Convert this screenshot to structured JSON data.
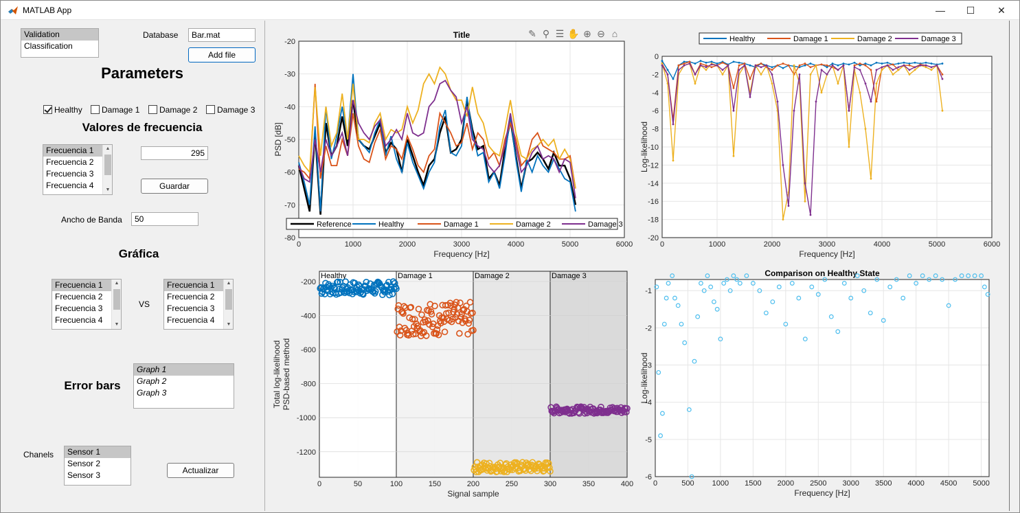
{
  "window": {
    "title": "MATLAB App",
    "min": "—",
    "max": "☐",
    "close": "✕"
  },
  "left": {
    "mode_list": [
      "Validation",
      "Classification"
    ],
    "database_label": "Database",
    "database_value": "Bar.mat",
    "add_file": "Add file",
    "parameters_heading": "Parameters",
    "checkboxes": [
      {
        "label": "Healthy",
        "checked": true
      },
      {
        "label": "Damage 1",
        "checked": false
      },
      {
        "label": "Damage 2",
        "checked": false
      },
      {
        "label": "Damage 3",
        "checked": false
      }
    ],
    "valores_heading": "Valores de frecuencia",
    "freq_list": [
      "Frecuencia 1",
      "Frecuencia 2",
      "Frecuencia 3",
      "Frecuencia 4"
    ],
    "freq_value": "295",
    "guardar": "Guardar",
    "ancho_label": "Ancho de Banda",
    "ancho_value": "50",
    "grafica_heading": "Gráfica",
    "vs_label": "VS",
    "freq_list_a": [
      "Frecuencia 1",
      "Frecuencia 2",
      "Frecuencia 3",
      "Frecuencia 4"
    ],
    "freq_list_b": [
      "Frecuencia 1",
      "Frecuencia 2",
      "Frecuencia 3",
      "Frecuencia 4"
    ],
    "error_bars_heading": "Error bars",
    "graph_list": [
      "Graph 1",
      "Graph 2",
      "Graph 3"
    ],
    "chanels_label": "Chanels",
    "sensor_list": [
      "Sensor 1",
      "Sensor 2",
      "Sensor 3"
    ],
    "actualizar": "Actualizar"
  },
  "colors": {
    "blue": "#0072BD",
    "orange": "#D95319",
    "yellow": "#EDB120",
    "purple": "#7E2F8E",
    "black": "#000000",
    "light_blue": "#4DBEEE"
  },
  "chart_data": [
    {
      "id": "psd",
      "type": "line",
      "title": "Title",
      "xlabel": "Frequency [Hz]",
      "ylabel": "PSD [dB]",
      "xlim": [
        0,
        6000
      ],
      "ylim": [
        -80,
        -20
      ],
      "xticks": [
        "0",
        "1000",
        "2000",
        "3000",
        "4000",
        "5000",
        "6000"
      ],
      "yticks": [
        "-20",
        "-30",
        "-40",
        "-50",
        "-60",
        "-70",
        "-80"
      ],
      "legend": [
        "Reference",
        "Healthy",
        "Damage 1",
        "Damage 2",
        "Damage 3"
      ],
      "x": [
        0,
        100,
        200,
        300,
        400,
        500,
        600,
        700,
        800,
        900,
        1000,
        1100,
        1200,
        1300,
        1400,
        1500,
        1600,
        1700,
        1800,
        1900,
        2000,
        2100,
        2200,
        2300,
        2400,
        2500,
        2600,
        2700,
        2800,
        2900,
        3000,
        3100,
        3200,
        3300,
        3400,
        3500,
        3600,
        3700,
        3800,
        3900,
        4000,
        4100,
        4200,
        4300,
        4400,
        4500,
        4600,
        4700,
        4800,
        4900,
        5000,
        5100
      ],
      "series": [
        {
          "name": "Reference",
          "values": [
            -58,
            -65,
            -72,
            -48,
            -73,
            -45,
            -55,
            -52,
            -43,
            -52,
            -38,
            -50,
            -52,
            -53,
            -49,
            -45,
            -54,
            -51,
            -53,
            -60,
            -50,
            -55,
            -60,
            -64,
            -58,
            -56,
            -48,
            -43,
            -54,
            -53,
            -50,
            -38,
            -47,
            -53,
            -52,
            -62,
            -60,
            -64,
            -53,
            -44,
            -55,
            -65,
            -57,
            -56,
            -54,
            -56,
            -59,
            -54,
            -58,
            -58,
            -62,
            -70
          ]
        },
        {
          "name": "Healthy",
          "values": [
            -57,
            -63,
            -70,
            -46,
            -72,
            -40,
            -56,
            -49,
            -40,
            -50,
            -30,
            -50,
            -52,
            -54,
            -48,
            -44,
            -55,
            -49,
            -56,
            -60,
            -51,
            -57,
            -61,
            -65,
            -60,
            -57,
            -46,
            -41,
            -54,
            -55,
            -52,
            -37,
            -48,
            -55,
            -54,
            -63,
            -60,
            -65,
            -55,
            -43,
            -56,
            -66,
            -56,
            -60,
            -55,
            -58,
            -60,
            -56,
            -59,
            -62,
            -63,
            -72
          ]
        },
        {
          "name": "Damage 1",
          "values": [
            -59,
            -60,
            -62,
            -33,
            -62,
            -52,
            -58,
            -58,
            -50,
            -55,
            -42,
            -52,
            -56,
            -57,
            -51,
            -47,
            -56,
            -52,
            -53,
            -56,
            -49,
            -53,
            -58,
            -60,
            -55,
            -53,
            -42,
            -45,
            -48,
            -52,
            -51,
            -45,
            -53,
            -48,
            -50,
            -56,
            -54,
            -58,
            -50,
            -45,
            -50,
            -58,
            -56,
            -50,
            -48,
            -52,
            -53,
            -54,
            -56,
            -56,
            -55,
            -65
          ]
        },
        {
          "name": "Damage 2",
          "values": [
            -55,
            -58,
            -60,
            -34,
            -55,
            -40,
            -52,
            -48,
            -36,
            -50,
            -33,
            -50,
            -50,
            -51,
            -45,
            -42,
            -50,
            -47,
            -48,
            -47,
            -40,
            -45,
            -41,
            -33,
            -30,
            -33,
            -28,
            -30,
            -35,
            -38,
            -38,
            -43,
            -34,
            -42,
            -45,
            -52,
            -54,
            -55,
            -47,
            -38,
            -48,
            -55,
            -56,
            -53,
            -52,
            -50,
            -52,
            -50,
            -56,
            -53,
            -56,
            -65
          ]
        },
        {
          "name": "Damage 3",
          "values": [
            -58,
            -62,
            -63,
            -50,
            -60,
            -50,
            -55,
            -52,
            -48,
            -55,
            -38,
            -45,
            -48,
            -50,
            -46,
            -44,
            -52,
            -50,
            -47,
            -50,
            -42,
            -48,
            -49,
            -48,
            -40,
            -38,
            -33,
            -32,
            -35,
            -37,
            -45,
            -40,
            -50,
            -52,
            -53,
            -58,
            -60,
            -58,
            -52,
            -42,
            -52,
            -60,
            -58,
            -54,
            -52,
            -56,
            -55,
            -56,
            -60,
            -56,
            -57,
            -68
          ]
        }
      ]
    },
    {
      "id": "loglik",
      "type": "line",
      "title": "",
      "xlabel": "Frequency [Hz]",
      "ylabel": "Log-likelihood",
      "xlim": [
        0,
        6000
      ],
      "ylim": [
        -20,
        0
      ],
      "xticks": [
        "0",
        "1000",
        "2000",
        "3000",
        "4000",
        "5000",
        "6000"
      ],
      "yticks": [
        "0",
        "-2",
        "-4",
        "-6",
        "-8",
        "-10",
        "-12",
        "-14",
        "-16",
        "-18",
        "-20"
      ],
      "legend": [
        "Healthy",
        "Damage 1",
        "Damage 2",
        "Damage 3"
      ],
      "x": [
        0,
        100,
        200,
        300,
        400,
        500,
        600,
        700,
        800,
        900,
        1000,
        1100,
        1200,
        1300,
        1400,
        1500,
        1600,
        1700,
        1800,
        1900,
        2000,
        2100,
        2200,
        2300,
        2400,
        2500,
        2600,
        2700,
        2800,
        2900,
        3000,
        3100,
        3200,
        3300,
        3400,
        3500,
        3600,
        3700,
        3800,
        3900,
        4000,
        4100,
        4200,
        4300,
        4400,
        4500,
        4600,
        4700,
        4800,
        4900,
        5000,
        5100
      ],
      "series": [
        {
          "name": "Healthy",
          "values": [
            -0.5,
            -1.5,
            -2.5,
            -1.0,
            -0.6,
            -0.6,
            -0.8,
            -0.5,
            -0.7,
            -0.6,
            -0.8,
            -0.6,
            -0.9,
            -0.6,
            -0.7,
            -0.8,
            -1.0,
            -1.2,
            -0.8,
            -1.0,
            -1.2,
            -1.0,
            -1.3,
            -1.0,
            -1.1,
            -1.2,
            -1.0,
            -0.8,
            -1.0,
            -0.9,
            -1.2,
            -0.8,
            -1.0,
            -0.8,
            -0.9,
            -0.7,
            -1.0,
            -0.8,
            -1.0,
            -0.7,
            -0.8,
            -0.7,
            -0.9,
            -0.8,
            -0.7,
            -0.8,
            -0.7,
            -0.8,
            -0.7,
            -0.8,
            -0.9,
            -0.8
          ]
        },
        {
          "name": "Damage 1",
          "values": [
            -0.8,
            -2.0,
            -7.0,
            -1.0,
            -0.8,
            -0.6,
            -2.0,
            -0.8,
            -1.0,
            -1.2,
            -1.0,
            -0.7,
            -1.0,
            -3.5,
            -1.0,
            -0.8,
            -2.5,
            -1.0,
            -0.8,
            -1.2,
            -1.5,
            -1.0,
            -0.8,
            -1.0,
            -2.0,
            -1.0,
            -0.8,
            -1.2,
            -1.0,
            -0.9,
            -1.0,
            -1.2,
            -1.5,
            -1.0,
            -6.0,
            -1.0,
            -0.8,
            -1.0,
            -1.5,
            -5.0,
            -1.2,
            -1.0,
            -0.9,
            -1.5,
            -1.0,
            -1.0,
            -1.2,
            -0.9,
            -1.0,
            -1.2,
            -1.0,
            -2.0
          ]
        },
        {
          "name": "Damage 2",
          "values": [
            -0.8,
            -3.0,
            -11.5,
            -2.0,
            -1.0,
            -0.8,
            -3.0,
            -1.0,
            -1.5,
            -0.8,
            -1.0,
            -2.0,
            -1.0,
            -11.0,
            -2.0,
            -1.0,
            -4.0,
            -1.0,
            -2.0,
            -1.0,
            -3.0,
            -6.0,
            -18.0,
            -15.0,
            -1.0,
            -3.0,
            -16.0,
            -2.0,
            -1.0,
            -4.0,
            -2.0,
            -1.0,
            -3.0,
            -1.0,
            -10.0,
            -1.5,
            -4.0,
            -8.0,
            -13.5,
            -3.0,
            -1.5,
            -1.0,
            -2.0,
            -1.5,
            -1.0,
            -2.0,
            -1.5,
            -1.0,
            -1.2,
            -1.5,
            -1.0,
            -6.0
          ]
        },
        {
          "name": "Damage 3",
          "values": [
            -1.0,
            -2.0,
            -7.5,
            -1.5,
            -1.0,
            -0.8,
            -2.0,
            -1.0,
            -1.2,
            -0.9,
            -1.0,
            -1.5,
            -1.0,
            -6.0,
            -1.5,
            -1.0,
            -4.5,
            -1.0,
            -1.2,
            -1.0,
            -2.0,
            -5.0,
            -12.0,
            -16.5,
            -6.0,
            -2.0,
            -14.0,
            -17.5,
            -5.0,
            -1.5,
            -2.0,
            -1.0,
            -1.5,
            -1.0,
            -6.0,
            -1.2,
            -1.5,
            -3.0,
            -5.0,
            -1.5,
            -1.2,
            -1.0,
            -1.5,
            -1.2,
            -1.0,
            -1.5,
            -1.2,
            -1.0,
            -1.0,
            -1.2,
            -1.0,
            -2.5
          ]
        }
      ]
    },
    {
      "id": "total",
      "type": "scatter",
      "title": "",
      "xlabel": "Signal sample",
      "ylabel": "Total log-likelihood PSD-based method",
      "xlim": [
        0,
        400
      ],
      "ylim": [
        -1350,
        -140
      ],
      "xticks": [
        "0",
        "50",
        "100",
        "150",
        "200",
        "250",
        "300",
        "350",
        "400"
      ],
      "yticks": [
        "-200",
        "-400",
        "-600",
        "-800",
        "-1000",
        "-1200"
      ],
      "regions": [
        "Healthy",
        "Damage 1",
        "Damage 2",
        "Damage 3"
      ],
      "series": [
        {
          "name": "Healthy",
          "x_range": [
            0,
            100
          ],
          "center": -240,
          "spread": 40
        },
        {
          "name": "Damage 1",
          "x_range": [
            100,
            200
          ],
          "center": -420,
          "spread": 100
        },
        {
          "name": "Damage 2",
          "x_range": [
            200,
            300
          ],
          "center": -1290,
          "spread": 30
        },
        {
          "name": "Damage 3",
          "x_range": [
            300,
            400
          ],
          "center": -955,
          "spread": 20
        }
      ]
    },
    {
      "id": "compare",
      "type": "scatter",
      "title": "Comparison on Healthy State",
      "xlabel": "Frequency [Hz]",
      "ylabel": "Log-likelihood",
      "xlim": [
        0,
        5120
      ],
      "ylim": [
        -6,
        -0.7
      ],
      "xticks": [
        "0",
        "500",
        "1000",
        "1500",
        "2000",
        "2500",
        "3000",
        "3500",
        "4000",
        "4500",
        "5000"
      ],
      "yticks": [
        "-1",
        "-2",
        "-3",
        "-4",
        "-5",
        "-6"
      ],
      "x": [
        20,
        50,
        80,
        110,
        140,
        170,
        200,
        260,
        300,
        350,
        400,
        450,
        520,
        560,
        600,
        650,
        700,
        750,
        800,
        850,
        900,
        950,
        1000,
        1050,
        1100,
        1150,
        1200,
        1250,
        1300,
        1400,
        1500,
        1600,
        1700,
        1800,
        1900,
        2000,
        2100,
        2200,
        2300,
        2400,
        2500,
        2600,
        2700,
        2800,
        2900,
        3000,
        3100,
        3200,
        3300,
        3400,
        3500,
        3600,
        3700,
        3800,
        3900,
        4000,
        4100,
        4200,
        4300,
        4400,
        4500,
        4600,
        4700,
        4800,
        4900,
        5000,
        5050,
        5100
      ],
      "values": [
        -0.9,
        -3.2,
        -4.9,
        -4.3,
        -1.9,
        -1.2,
        -0.8,
        -0.6,
        -1.2,
        -1.4,
        -1.9,
        -2.4,
        -4.2,
        -6.0,
        -2.9,
        -1.7,
        -0.8,
        -1.0,
        -0.6,
        -0.9,
        -1.3,
        -1.5,
        -2.3,
        -0.8,
        -0.7,
        -1.0,
        -0.6,
        -0.7,
        -0.8,
        -0.6,
        -0.8,
        -1.0,
        -1.6,
        -1.3,
        -0.9,
        -1.9,
        -0.8,
        -1.2,
        -2.3,
        -0.9,
        -1.1,
        -0.7,
        -1.7,
        -2.1,
        -0.8,
        -1.2,
        -0.6,
        -1.0,
        -1.6,
        -0.7,
        -1.8,
        -0.9,
        -0.7,
        -1.2,
        -0.6,
        -0.8,
        -0.6,
        -0.7,
        -0.6,
        -0.7,
        -1.4,
        -0.7,
        -0.6,
        -0.6,
        -0.6,
        -0.6,
        -0.9,
        -1.1
      ]
    }
  ],
  "toolbar_icons": [
    "brush-icon",
    "datatip-icon",
    "legend-icon",
    "pan-icon",
    "zoom-in-icon",
    "zoom-out-icon",
    "home-icon"
  ]
}
